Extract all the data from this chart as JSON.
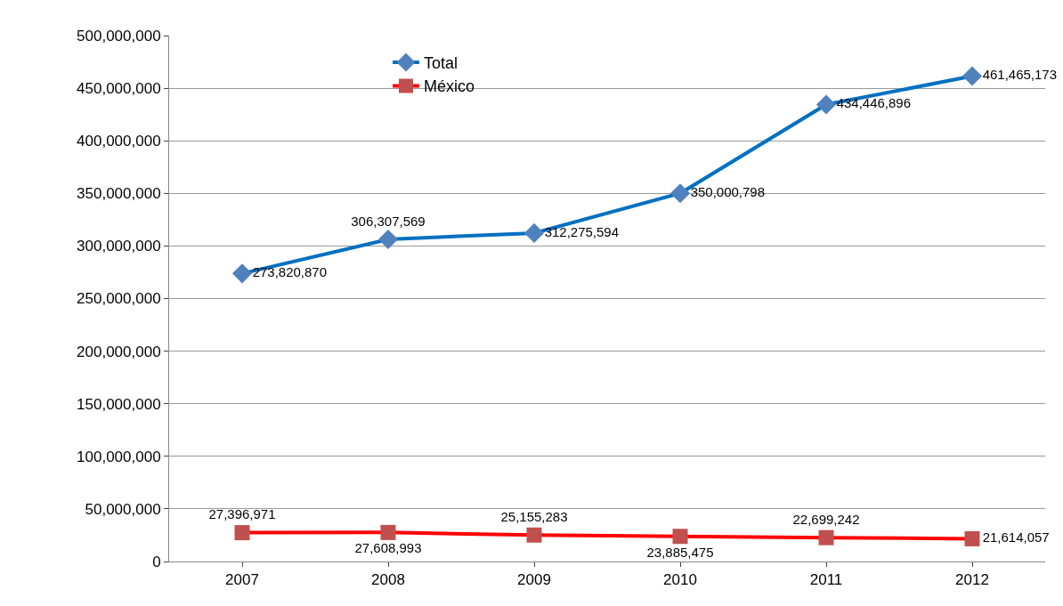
{
  "chart_data": {
    "type": "line",
    "categories": [
      "2007",
      "2008",
      "2009",
      "2010",
      "2011",
      "2012"
    ],
    "series": [
      {
        "name": "Total",
        "color": "#0070c0",
        "marker": "diamond",
        "values": [
          273820870,
          306307569,
          312275594,
          350000798,
          434446896,
          461465173
        ],
        "value_labels": [
          "273,820,870",
          "306,307,569",
          "312,275,594",
          "350,000,798",
          "434,446,896",
          "461,465,173"
        ]
      },
      {
        "name": "México",
        "color": "#ff0000",
        "marker": "square",
        "values": [
          27396971,
          27608993,
          25155283,
          23885475,
          22699242,
          21614057
        ],
        "value_labels": [
          "27,396,971",
          "27,608,993",
          "25,155,283",
          "23,885,475",
          "22,699,242",
          "21,614,057"
        ]
      }
    ],
    "ylim": [
      0,
      500000000
    ],
    "yticks": [
      {
        "value": 0,
        "label": "0"
      },
      {
        "value": 50000000,
        "label": "50,000,000"
      },
      {
        "value": 100000000,
        "label": "100,000,000"
      },
      {
        "value": 150000000,
        "label": "150,000,000"
      },
      {
        "value": 200000000,
        "label": "200,000,000"
      },
      {
        "value": 250000000,
        "label": "250,000,000"
      },
      {
        "value": 300000000,
        "label": "300,000,000"
      },
      {
        "value": 350000000,
        "label": "350,000,000"
      },
      {
        "value": 400000000,
        "label": "400,000,000"
      },
      {
        "value": 450000000,
        "label": "450,000,000"
      },
      {
        "value": 500000000,
        "label": "500,000,000"
      }
    ],
    "grid": "y",
    "legend": "top left",
    "line_style": "solid"
  }
}
